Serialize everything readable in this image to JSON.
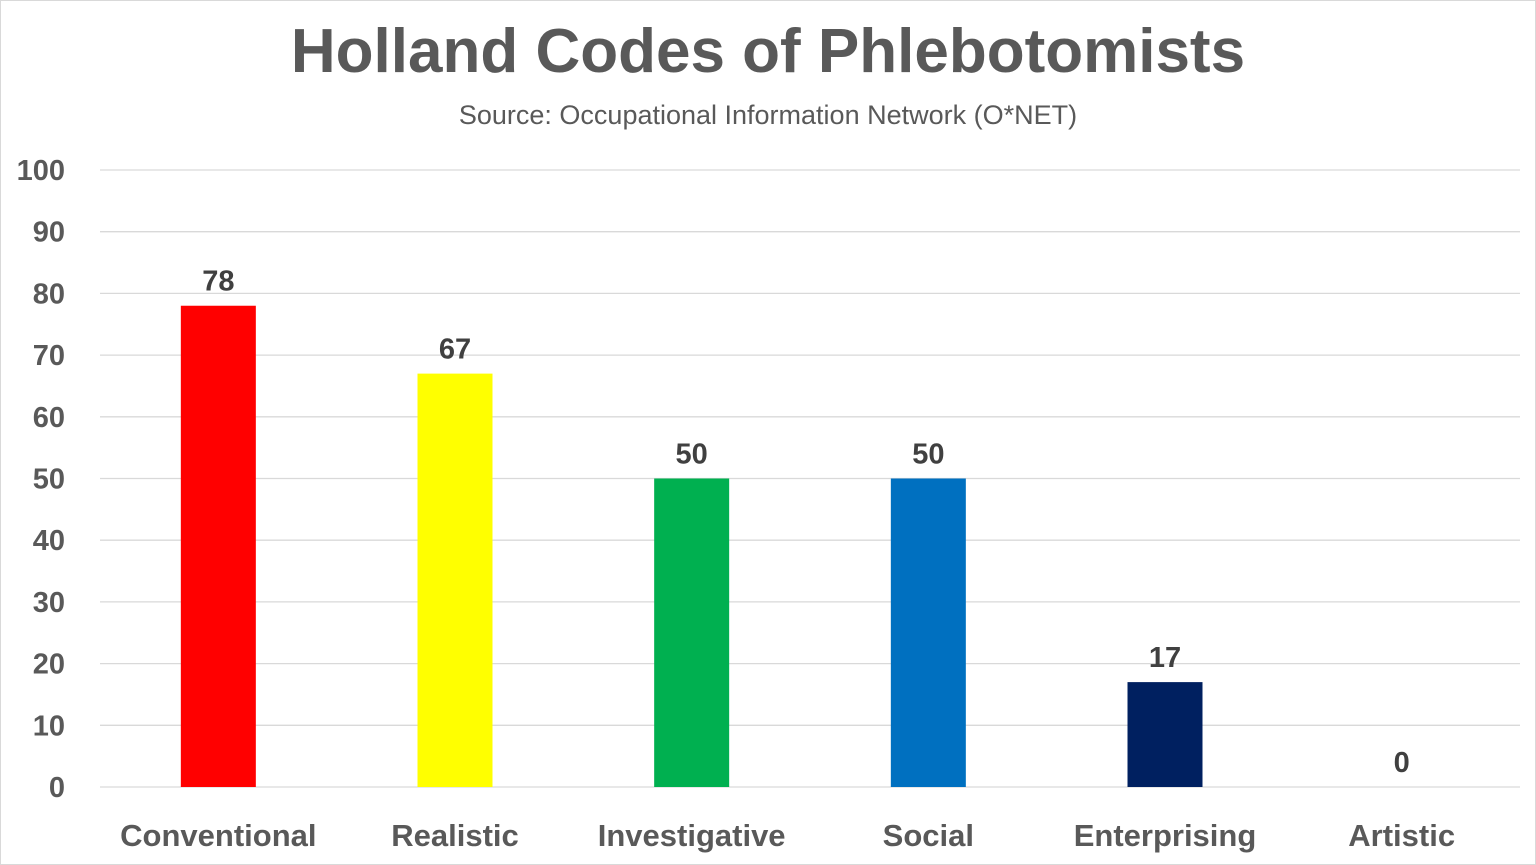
{
  "chart_data": {
    "type": "bar",
    "title": "Holland Codes of Phlebotomists",
    "subtitle": "Source: Occupational Information Network (O*NET)",
    "xlabel": "",
    "ylabel": "",
    "categories": [
      "Conventional",
      "Realistic",
      "Investigative",
      "Social",
      "Enterprising",
      "Artistic"
    ],
    "values": [
      78,
      67,
      50,
      50,
      17,
      0
    ],
    "data_labels": [
      "78",
      "67",
      "50",
      "50",
      "17",
      "0"
    ],
    "colors": [
      "#ff0000",
      "#ffff00",
      "#00b050",
      "#0070c0",
      "#002060",
      "#7030a0"
    ],
    "ylim": [
      0,
      100
    ],
    "yticks": [
      0,
      10,
      20,
      30,
      40,
      50,
      60,
      70,
      80,
      90,
      100
    ],
    "ytick_labels": [
      "0",
      "10",
      "20",
      "30",
      "40",
      "50",
      "60",
      "70",
      "80",
      "90",
      "100"
    ],
    "grid": true,
    "gridline_color": "#d9d9d9",
    "legend": "none"
  }
}
